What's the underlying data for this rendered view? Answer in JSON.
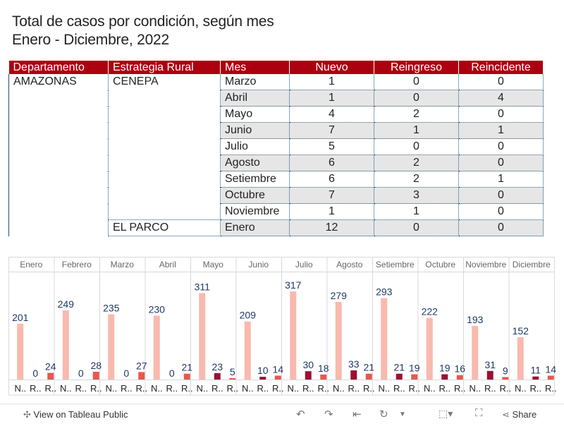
{
  "title": {
    "line1": "Total de casos por condición, según mes",
    "line2": "Enero - Diciembre, 2022"
  },
  "table": {
    "headers": [
      "Departamento",
      "Estrategia Rural",
      "Mes",
      "Nuevo",
      "Reingreso",
      "Reincidente"
    ],
    "departamento": "AMAZONAS",
    "groups": [
      {
        "estrategia": "CENEPA",
        "rows": [
          {
            "mes": "Marzo",
            "nuevo": "1",
            "reingreso": "0",
            "reincidente": "0"
          },
          {
            "mes": "Abril",
            "nuevo": "1",
            "reingreso": "0",
            "reincidente": "4"
          },
          {
            "mes": "Mayo",
            "nuevo": "4",
            "reingreso": "2",
            "reincidente": "0"
          },
          {
            "mes": "Junio",
            "nuevo": "7",
            "reingreso": "1",
            "reincidente": "1"
          },
          {
            "mes": "Julio",
            "nuevo": "5",
            "reingreso": "0",
            "reincidente": "0"
          },
          {
            "mes": "Agosto",
            "nuevo": "6",
            "reingreso": "2",
            "reincidente": "0"
          },
          {
            "mes": "Setiembre",
            "nuevo": "6",
            "reingreso": "2",
            "reincidente": "1"
          },
          {
            "mes": "Octubre",
            "nuevo": "7",
            "reingreso": "3",
            "reincidente": "0"
          },
          {
            "mes": "Noviembre",
            "nuevo": "1",
            "reingreso": "1",
            "reincidente": "0"
          }
        ]
      },
      {
        "estrategia": "EL PARCO",
        "rows": [
          {
            "mes": "Enero",
            "nuevo": "12",
            "reingreso": "0",
            "reincidente": "0"
          }
        ]
      }
    ]
  },
  "chart_data": {
    "type": "bar",
    "categories": [
      "Enero",
      "Febrero",
      "Marzo",
      "Abril",
      "Mayo",
      "Junio",
      "Julio",
      "Agosto",
      "Setiembre",
      "Octubre",
      "Noviembre",
      "Diciembre"
    ],
    "sub_labels": [
      "N..",
      "R..",
      "R.."
    ],
    "series": [
      {
        "name": "Nuevo",
        "color": "#f9b9ae",
        "values": [
          201,
          249,
          235,
          230,
          311,
          209,
          317,
          279,
          293,
          222,
          193,
          152
        ]
      },
      {
        "name": "Reingreso",
        "color": "#9e1030",
        "values": [
          0,
          0,
          0,
          0,
          23,
          10,
          30,
          33,
          21,
          19,
          31,
          11
        ]
      },
      {
        "name": "Reincidente",
        "color": "#e9574f",
        "values": [
          24,
          28,
          27,
          21,
          5,
          14,
          18,
          21,
          19,
          16,
          9,
          14
        ]
      }
    ],
    "label_color": "#1f3864",
    "ylim": [
      0,
      330
    ]
  },
  "footer": {
    "view_label": "View on Tableau Public",
    "share_label": "Share"
  }
}
